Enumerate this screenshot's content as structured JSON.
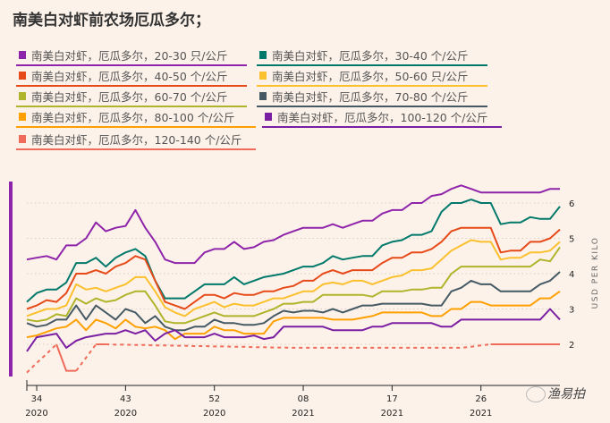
{
  "title": "南美白对虾前农场厄瓜多尔；",
  "watermark": "渔易拍",
  "chart_data": {
    "type": "line",
    "ylabel": "USD PER KILO",
    "ylim": [
      1,
      6.6
    ],
    "yticks": [
      2,
      3,
      4,
      5,
      6
    ],
    "grid": true,
    "legend_placement": "top",
    "x": [
      "33/2020",
      "34/2020",
      "35/2020",
      "36/2020",
      "37/2020",
      "38/2020",
      "39/2020",
      "40/2020",
      "41/2020",
      "42/2020",
      "43/2020",
      "44/2020",
      "45/2020",
      "46/2020",
      "47/2020",
      "48/2020",
      "49/2020",
      "50/2020",
      "51/2020",
      "52/2020",
      "53/2020",
      "01/2021",
      "02/2021",
      "03/2021",
      "04/2021",
      "05/2021",
      "06/2021",
      "07/2021",
      "08/2021",
      "09/2021",
      "10/2021",
      "11/2021",
      "12/2021",
      "13/2021",
      "14/2021",
      "15/2021",
      "16/2021",
      "17/2021",
      "18/2021",
      "19/2021",
      "20/2021",
      "21/2021",
      "22/2021",
      "23/2021",
      "24/2021",
      "25/2021",
      "26/2021",
      "27/2021",
      "28/2021",
      "29/2021",
      "30/2021",
      "31/2021",
      "32/2021",
      "33/2021",
      "34/2021"
    ],
    "xticks": [
      {
        "index": 1,
        "week": "34",
        "year": "2020"
      },
      {
        "index": 10,
        "week": "43",
        "year": "2020"
      },
      {
        "index": 19,
        "week": "52",
        "year": "2020"
      },
      {
        "index": 28,
        "week": "08",
        "year": "2021"
      },
      {
        "index": 37,
        "week": "17",
        "year": "2021"
      },
      {
        "index": 46,
        "week": "26",
        "year": "2021"
      }
    ],
    "series": [
      {
        "name": "南美白对虾，厄瓜多尔，20-30 只/公斤",
        "color": "#8e24aa",
        "values": [
          4.4,
          4.45,
          4.5,
          4.4,
          4.8,
          4.8,
          5.0,
          5.45,
          5.2,
          5.3,
          5.35,
          5.8,
          5.3,
          4.9,
          4.4,
          4.3,
          4.3,
          4.3,
          4.6,
          4.7,
          4.7,
          4.9,
          4.7,
          4.75,
          4.9,
          4.95,
          5.1,
          5.2,
          5.3,
          5.3,
          5.3,
          5.4,
          5.3,
          5.4,
          5.5,
          5.5,
          5.7,
          5.8,
          5.8,
          6.0,
          6.0,
          6.2,
          6.25,
          6.4,
          6.5,
          6.4,
          6.3,
          6.3,
          6.3,
          6.3,
          6.3,
          6.3,
          6.3,
          6.4,
          6.4
        ]
      },
      {
        "name": "南美白对虾，厄瓜多尔，30-40 个/公斤",
        "color": "#00796b",
        "values": [
          3.2,
          3.45,
          3.55,
          3.55,
          3.75,
          4.3,
          4.3,
          4.45,
          4.2,
          4.45,
          4.6,
          4.7,
          4.5,
          3.8,
          3.3,
          3.3,
          3.3,
          3.5,
          3.7,
          3.7,
          3.7,
          3.9,
          3.7,
          3.8,
          3.9,
          3.95,
          4.0,
          4.1,
          4.2,
          4.2,
          4.3,
          4.5,
          4.4,
          4.45,
          4.5,
          4.5,
          4.8,
          4.9,
          4.95,
          5.1,
          5.1,
          5.2,
          5.75,
          6.0,
          6.0,
          6.1,
          6.0,
          6.0,
          5.4,
          5.45,
          5.45,
          5.6,
          5.55,
          5.55,
          5.9
        ]
      },
      {
        "name": "南美白对虾，厄瓜多尔，40-50 个/公斤",
        "color": "#e64a19",
        "values": [
          3.0,
          3.1,
          3.25,
          3.2,
          3.45,
          4.0,
          4.0,
          4.1,
          4.0,
          4.2,
          4.3,
          4.5,
          4.4,
          3.8,
          3.2,
          3.1,
          3.0,
          3.2,
          3.4,
          3.4,
          3.3,
          3.45,
          3.4,
          3.4,
          3.5,
          3.5,
          3.6,
          3.65,
          3.8,
          3.8,
          4.0,
          4.1,
          4.0,
          4.1,
          4.1,
          4.1,
          4.3,
          4.45,
          4.45,
          4.6,
          4.6,
          4.7,
          4.9,
          5.2,
          5.3,
          5.3,
          5.3,
          5.3,
          4.6,
          4.65,
          4.65,
          4.9,
          4.9,
          5.0,
          5.25
        ]
      },
      {
        "name": "南美白对虾，厄瓜多尔，50-60 只/公斤",
        "color": "#fbc02d",
        "values": [
          2.8,
          2.9,
          3.0,
          3.0,
          3.1,
          3.7,
          3.55,
          3.6,
          3.5,
          3.6,
          3.7,
          3.9,
          3.9,
          3.5,
          3.05,
          2.9,
          2.8,
          3.0,
          3.1,
          3.2,
          3.05,
          3.15,
          3.1,
          3.1,
          3.2,
          3.3,
          3.3,
          3.4,
          3.5,
          3.5,
          3.7,
          3.75,
          3.7,
          3.8,
          3.8,
          3.7,
          3.8,
          3.9,
          3.95,
          4.1,
          4.1,
          4.15,
          4.4,
          4.65,
          4.8,
          4.95,
          4.9,
          4.9,
          4.4,
          4.45,
          4.45,
          4.6,
          4.6,
          4.65,
          4.9
        ]
      },
      {
        "name": "南美白对虾，厄瓜多尔，60-70 个/公斤",
        "color": "#afb42b",
        "values": [
          2.7,
          2.65,
          2.7,
          2.85,
          2.8,
          3.3,
          3.15,
          3.3,
          3.2,
          3.25,
          3.4,
          3.5,
          3.5,
          3.1,
          2.65,
          2.6,
          2.6,
          2.7,
          2.8,
          2.9,
          2.8,
          2.8,
          2.8,
          2.8,
          2.9,
          3.0,
          3.15,
          3.15,
          3.2,
          3.2,
          3.4,
          3.4,
          3.4,
          3.4,
          3.4,
          3.35,
          3.5,
          3.5,
          3.5,
          3.55,
          3.55,
          3.6,
          3.6,
          4.0,
          4.2,
          4.2,
          4.2,
          4.2,
          4.2,
          4.2,
          4.2,
          4.2,
          4.4,
          4.35,
          4.75
        ]
      },
      {
        "name": "南美白对虾，厄瓜多尔，70-80 个/公斤",
        "color": "#455a64",
        "values": [
          2.6,
          2.5,
          2.55,
          2.7,
          2.7,
          3.1,
          2.7,
          3.1,
          2.9,
          2.7,
          3.0,
          2.9,
          2.6,
          2.8,
          2.5,
          2.4,
          2.4,
          2.5,
          2.5,
          2.7,
          2.6,
          2.6,
          2.55,
          2.55,
          2.6,
          2.8,
          2.95,
          2.9,
          2.95,
          2.95,
          2.9,
          3.0,
          2.9,
          3.0,
          3.1,
          3.1,
          3.15,
          3.15,
          3.15,
          3.15,
          3.15,
          3.1,
          3.1,
          3.5,
          3.6,
          3.8,
          3.7,
          3.7,
          3.5,
          3.5,
          3.5,
          3.5,
          3.7,
          3.8,
          4.05
        ]
      },
      {
        "name": "南美白对虾，厄瓜多尔，80-100 个/公斤",
        "color": "#ffa000",
        "values": [
          2.2,
          2.25,
          2.35,
          2.45,
          2.5,
          2.7,
          2.4,
          2.7,
          2.6,
          2.45,
          2.7,
          2.5,
          2.45,
          2.5,
          2.4,
          2.15,
          2.3,
          2.3,
          2.3,
          2.5,
          2.4,
          2.4,
          2.3,
          2.3,
          2.3,
          2.65,
          2.75,
          2.75,
          2.75,
          2.75,
          2.75,
          2.7,
          2.7,
          2.7,
          2.75,
          2.8,
          2.9,
          2.9,
          2.9,
          2.9,
          2.9,
          2.8,
          2.8,
          3.0,
          3.0,
          3.2,
          3.2,
          3.1,
          3.1,
          3.1,
          3.1,
          3.1,
          3.3,
          3.3,
          3.5
        ]
      },
      {
        "name": "南美白对虾，厄瓜多尔，100-120 个/公斤",
        "color": "#7b1fa2",
        "values": [
          1.8,
          2.2,
          2.25,
          2.3,
          1.9,
          2.1,
          2.2,
          2.25,
          2.3,
          2.3,
          2.4,
          2.3,
          2.4,
          2.1,
          2.3,
          2.4,
          2.2,
          2.2,
          2.2,
          2.3,
          2.2,
          2.2,
          2.2,
          2.25,
          2.15,
          2.2,
          2.5,
          2.5,
          2.5,
          2.5,
          2.5,
          2.4,
          2.4,
          2.4,
          2.4,
          2.5,
          2.5,
          2.6,
          2.6,
          2.6,
          2.6,
          2.6,
          2.5,
          2.5,
          2.7,
          2.7,
          2.7,
          2.7,
          2.7,
          2.7,
          2.7,
          2.7,
          2.7,
          3.0,
          2.7
        ]
      },
      {
        "name": "南美白对虾，厄瓜多尔，120-140 个/公斤",
        "color": "#ef6c5a",
        "values": [
          1.2,
          1.47,
          1.73,
          2.0,
          1.25,
          1.25,
          1.62,
          2.0,
          2.0,
          1.99,
          1.99,
          1.98,
          1.98,
          1.97,
          1.97,
          1.96,
          1.96,
          1.95,
          1.95,
          1.94,
          1.94,
          1.93,
          1.93,
          1.92,
          1.92,
          1.91,
          1.91,
          1.9,
          1.9,
          1.9,
          1.9,
          1.9,
          1.9,
          1.9,
          1.9,
          1.9,
          1.9,
          1.9,
          1.9,
          1.9,
          1.9,
          1.9,
          1.9,
          1.9,
          1.9,
          1.93,
          1.97,
          2.0,
          2.0,
          2.0,
          2.0,
          2.0,
          2.0,
          2.0,
          2.0
        ],
        "dashed_index_ranges": [
          [
            0,
            3
          ],
          [
            5,
            7
          ],
          [
            8,
            47
          ]
        ]
      }
    ]
  }
}
